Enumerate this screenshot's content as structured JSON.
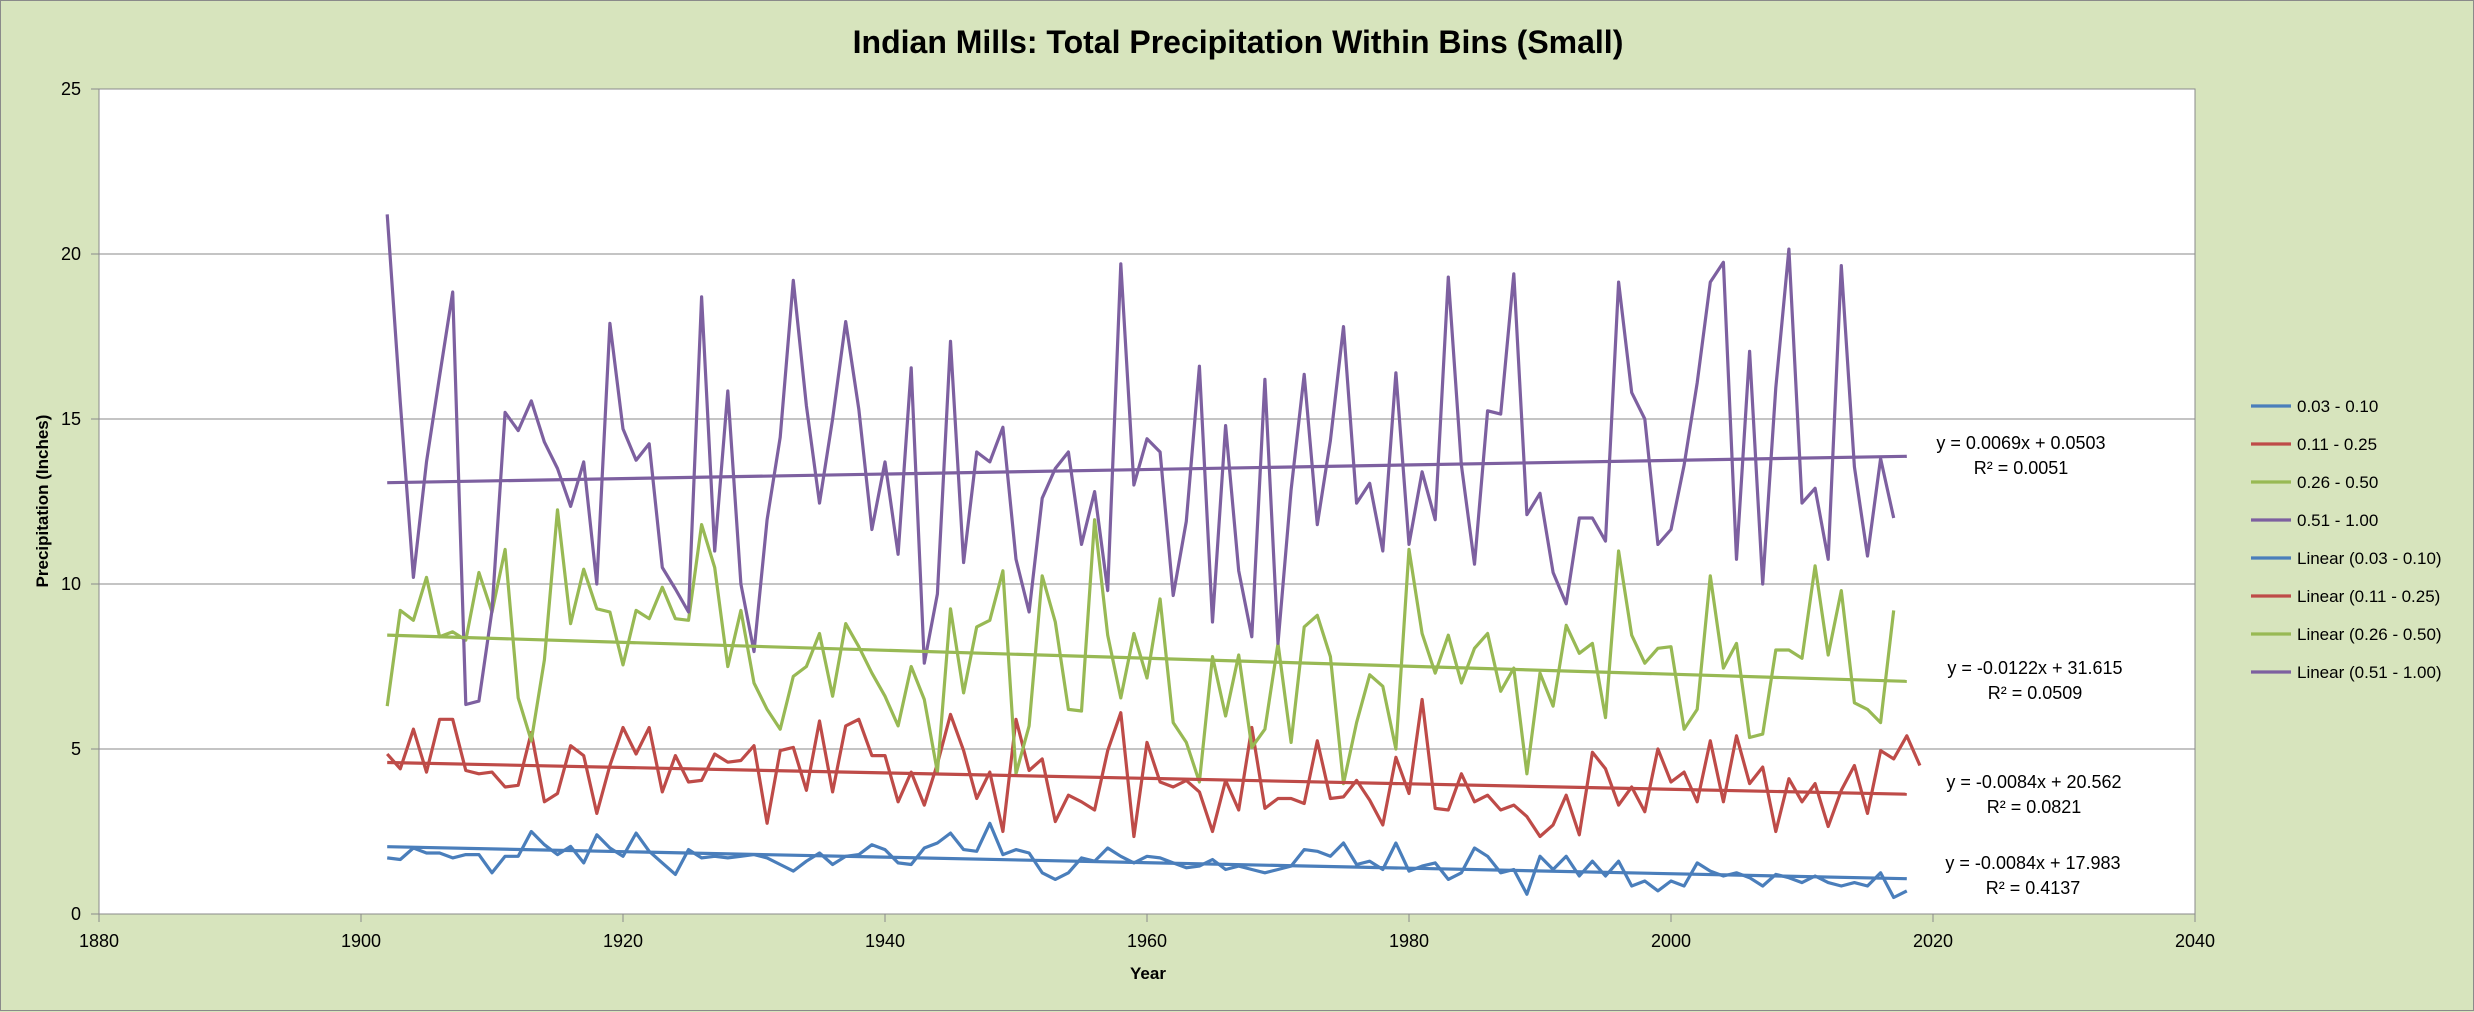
{
  "chart_data": {
    "type": "line",
    "title": "Indian Mills: Total Precipitation Within Bins (Small)",
    "xlabel": "Year",
    "ylabel": "Precipitation (Inches)",
    "xlim": [
      1880,
      2040
    ],
    "ylim": [
      0,
      25
    ],
    "xticks": [
      "1880",
      "1900",
      "1920",
      "1940",
      "1960",
      "1980",
      "2000",
      "2020",
      "2040"
    ],
    "yticks": [
      "0",
      "5",
      "10",
      "15",
      "20",
      "25"
    ],
    "grid": "horizontal",
    "legend_position": "right",
    "x_start": 1902,
    "series": [
      {
        "name": "0.03 - 0.10",
        "color": "#4a7ebb",
        "values": [
          1.7,
          1.65,
          2.0,
          1.85,
          1.85,
          1.7,
          1.8,
          1.8,
          1.25,
          1.75,
          1.75,
          2.5,
          2.1,
          1.8,
          2.05,
          1.55,
          2.4,
          2.0,
          1.75,
          2.45,
          1.9,
          1.55,
          1.2,
          1.95,
          1.7,
          1.75,
          1.7,
          1.75,
          1.8,
          1.7,
          1.5,
          1.3,
          1.6,
          1.85,
          1.5,
          1.75,
          1.8,
          2.1,
          1.95,
          1.55,
          1.5,
          2.0,
          2.15,
          2.45,
          1.95,
          1.9,
          2.75,
          1.8,
          1.95,
          1.85,
          1.25,
          1.05,
          1.25,
          1.7,
          1.6,
          2.0,
          1.75,
          1.55,
          1.75,
          1.7,
          1.55,
          1.4,
          1.45,
          1.65,
          1.35,
          1.45,
          1.35,
          1.25,
          1.35,
          1.45,
          1.95,
          1.9,
          1.75,
          2.15,
          1.5,
          1.6,
          1.35,
          2.15,
          1.3,
          1.45,
          1.55,
          1.05,
          1.25,
          2.0,
          1.75,
          1.25,
          1.35,
          0.6,
          1.75,
          1.35,
          1.75,
          1.15,
          1.6,
          1.15,
          1.6,
          0.85,
          1.0,
          0.7,
          1.0,
          0.85,
          1.55,
          1.3,
          1.15,
          1.25,
          1.1,
          0.85,
          1.2,
          1.1,
          0.95,
          1.15,
          0.95,
          0.85,
          0.95,
          0.85,
          1.25,
          0.5,
          0.7
        ]
      },
      {
        "name": "0.11 - 0.25",
        "color": "#be4b48",
        "values": [
          4.85,
          4.4,
          5.6,
          4.3,
          5.9,
          5.9,
          4.35,
          4.25,
          4.3,
          3.85,
          3.9,
          5.5,
          3.4,
          3.65,
          5.1,
          4.8,
          3.05,
          4.5,
          5.65,
          4.85,
          5.65,
          3.7,
          4.8,
          4.0,
          4.05,
          4.85,
          4.6,
          4.65,
          5.1,
          2.75,
          4.95,
          5.05,
          3.75,
          5.85,
          3.7,
          5.7,
          5.9,
          4.8,
          4.8,
          3.4,
          4.3,
          3.3,
          4.55,
          6.05,
          4.95,
          3.5,
          4.3,
          2.5,
          5.9,
          4.35,
          4.7,
          2.8,
          3.6,
          3.4,
          3.15,
          4.95,
          6.1,
          2.35,
          5.2,
          4.0,
          3.85,
          4.05,
          3.7,
          2.5,
          4.05,
          3.15,
          5.65,
          3.2,
          3.5,
          3.5,
          3.35,
          5.25,
          3.5,
          3.55,
          4.05,
          3.45,
          2.7,
          4.75,
          3.65,
          6.5,
          3.2,
          3.15,
          4.25,
          3.4,
          3.6,
          3.15,
          3.3,
          2.95,
          2.35,
          2.7,
          3.6,
          2.4,
          4.9,
          4.4,
          3.3,
          3.85,
          3.1,
          5.0,
          4.0,
          4.3,
          3.4,
          5.25,
          3.4,
          5.4,
          3.95,
          4.45,
          2.5,
          4.1,
          3.4,
          3.95,
          2.65,
          3.75,
          4.5,
          3.05,
          4.95,
          4.7,
          5.4,
          4.5
        ]
      },
      {
        "name": "0.26 - 0.50",
        "color": "#98b954",
        "values": [
          6.3,
          9.2,
          8.9,
          10.2,
          8.4,
          8.55,
          8.3,
          10.35,
          9.15,
          11.05,
          6.55,
          5.25,
          7.7,
          12.25,
          8.8,
          10.45,
          9.25,
          9.15,
          7.55,
          9.2,
          8.95,
          9.9,
          8.95,
          8.9,
          11.8,
          10.5,
          7.5,
          9.2,
          7.0,
          6.2,
          5.6,
          7.2,
          7.5,
          8.5,
          6.6,
          8.8,
          8.1,
          7.3,
          6.6,
          5.7,
          7.5,
          6.5,
          4.3,
          9.25,
          6.7,
          8.7,
          8.9,
          10.4,
          4.25,
          5.7,
          10.25,
          8.85,
          6.2,
          6.15,
          11.95,
          8.45,
          6.55,
          8.5,
          7.15,
          9.55,
          5.8,
          5.2,
          4.0,
          7.8,
          6.0,
          7.85,
          5.05,
          5.6,
          8.2,
          5.2,
          8.7,
          9.05,
          7.8,
          3.95,
          5.8,
          7.25,
          6.9,
          5.0,
          11.05,
          8.5,
          7.3,
          8.45,
          7.0,
          8.05,
          8.5,
          6.75,
          7.45,
          4.25,
          7.3,
          6.3,
          8.75,
          7.9,
          8.2,
          5.95,
          11.0,
          8.45,
          7.6,
          8.05,
          8.1,
          5.6,
          6.2,
          10.25,
          7.45,
          8.2,
          5.35,
          5.45,
          8.0,
          8.0,
          7.75,
          10.55,
          7.85,
          9.8,
          6.4,
          6.2,
          5.8,
          9.2
        ]
      },
      {
        "name": "0.51 - 1.00",
        "color": "#7d60a0",
        "values": [
          21.2,
          15.5,
          10.2,
          13.7,
          16.3,
          18.85,
          6.35,
          6.45,
          9.2,
          15.2,
          14.65,
          15.55,
          14.3,
          13.5,
          12.35,
          13.7,
          10.0,
          17.9,
          14.7,
          13.75,
          14.25,
          10.5,
          9.85,
          9.15,
          18.7,
          11.0,
          15.85,
          10.0,
          7.95,
          11.95,
          14.45,
          19.2,
          15.4,
          12.45,
          15.0,
          17.95,
          15.3,
          11.65,
          13.7,
          10.9,
          16.55,
          7.6,
          9.7,
          17.35,
          10.65,
          14.0,
          13.7,
          14.75,
          10.75,
          9.15,
          12.6,
          13.5,
          14.0,
          11.2,
          12.8,
          9.8,
          19.7,
          13.0,
          14.4,
          14.0,
          9.65,
          11.9,
          16.6,
          8.85,
          14.8,
          10.4,
          8.4,
          16.2,
          8.2,
          12.85,
          16.35,
          11.8,
          14.35,
          17.8,
          12.45,
          13.05,
          11.0,
          16.4,
          11.2,
          13.4,
          11.95,
          19.3,
          13.6,
          10.6,
          15.25,
          15.15,
          19.4,
          12.1,
          12.75,
          10.35,
          9.4,
          12.0,
          12.0,
          11.3,
          19.15,
          15.8,
          15.0,
          11.2,
          11.65,
          13.6,
          16.1,
          19.15,
          19.75,
          10.75,
          17.05,
          10.0,
          15.95,
          20.15,
          12.45,
          12.9,
          10.75,
          19.65,
          13.55,
          10.85,
          13.8,
          12.0
        ]
      }
    ],
    "trendlines": [
      {
        "name": "Linear (0.03 - 0.10)",
        "color": "#4a7ebb",
        "start": 2.04,
        "end": 1.07,
        "equation": "y = -0.0084x + 17.983",
        "r2": "R² = 0.4137"
      },
      {
        "name": "Linear (0.11 - 0.25)",
        "color": "#be4b48",
        "start": 4.59,
        "end": 3.63,
        "equation": "y = -0.0084x + 20.562",
        "r2": "R² = 0.0821"
      },
      {
        "name": "Linear (0.26 - 0.50)",
        "color": "#98b954",
        "start": 8.45,
        "end": 7.05,
        "equation": "y = -0.0122x + 31.615",
        "r2": "R² = 0.0509"
      },
      {
        "name": "Linear (0.51 - 1.00)",
        "color": "#7d60a0",
        "start": 13.07,
        "end": 13.87,
        "equation": "y = 0.0069x + 0.0503",
        "r2": "R² = 0.0051"
      }
    ]
  }
}
